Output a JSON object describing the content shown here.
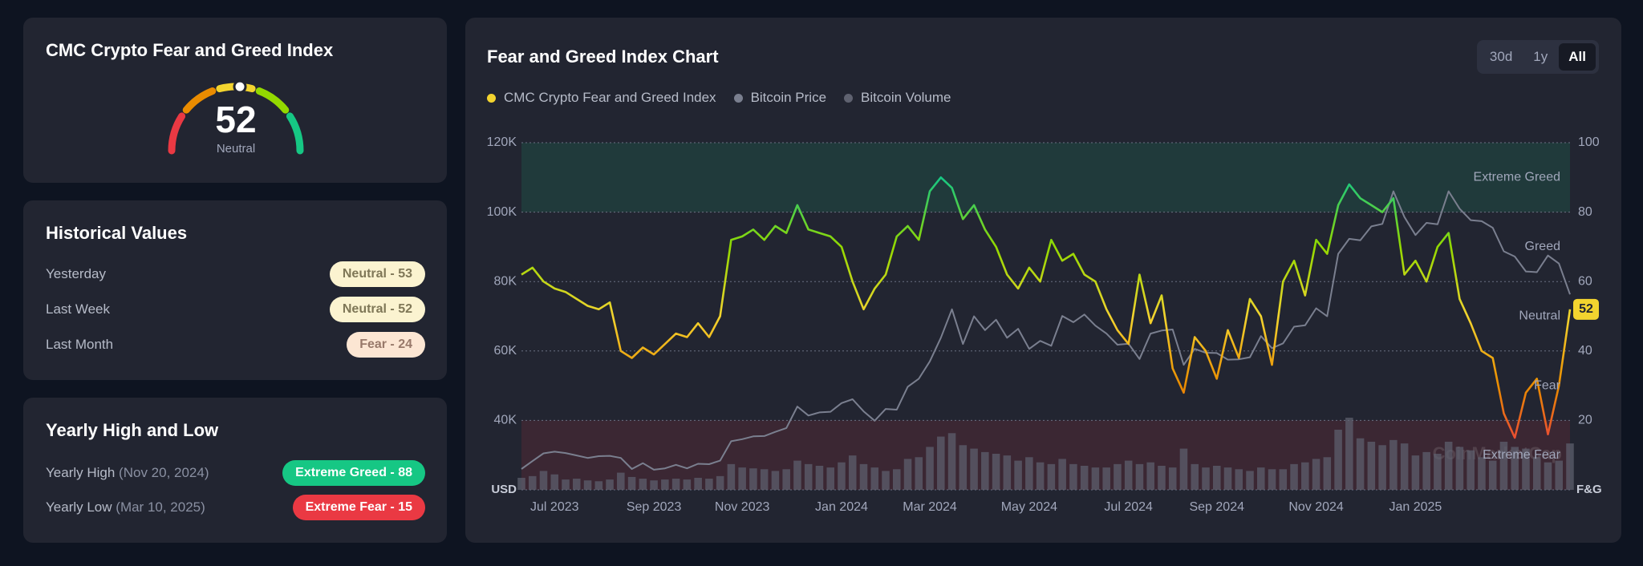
{
  "gauge": {
    "title": "CMC Crypto Fear and Greed Index",
    "value": 52,
    "label": "Neutral"
  },
  "historical": {
    "title": "Historical Values",
    "rows": [
      {
        "label": "Yesterday",
        "value": "Neutral - 53",
        "pill_color": "#fbf3d0",
        "text_color": "#7f7757"
      },
      {
        "label": "Last Week",
        "value": "Neutral - 52",
        "pill_color": "#fbf3d0",
        "text_color": "#7f7757"
      },
      {
        "label": "Last Month",
        "value": "Fear - 24",
        "pill_color": "#fce6d3",
        "text_color": "#98796a"
      }
    ]
  },
  "yearly": {
    "title": "Yearly High and Low",
    "rows": [
      {
        "label": "Yearly High",
        "date": "(Nov 20, 2024)",
        "value": "Extreme Greed - 88",
        "pill_color": "#16c784",
        "text_color": "#ffffff"
      },
      {
        "label": "Yearly Low",
        "date": "(Mar 10, 2025)",
        "value": "Extreme Fear - 15",
        "pill_color": "#ea3943",
        "text_color": "#ffffff"
      }
    ]
  },
  "chart_data": {
    "type": "line",
    "title": "Fear and Greed Index Chart",
    "range_buttons": [
      "30d",
      "1y",
      "All"
    ],
    "active_button": 2,
    "y_label": "USD",
    "y2_label": "F&G",
    "watermark": "CoinMarketCap",
    "grid": true,
    "ylim": [
      20000,
      120000
    ],
    "yticks": [
      {
        "value": 40000,
        "label": "40K"
      },
      {
        "value": 60000,
        "label": "60K"
      },
      {
        "value": 80000,
        "label": "80K"
      },
      {
        "value": 100000,
        "label": "100K"
      },
      {
        "value": 120000,
        "label": "120K"
      }
    ],
    "y2lim": [
      0,
      100
    ],
    "y2ticks": [
      20,
      40,
      60,
      80,
      100
    ],
    "bands": [
      {
        "label": "Extreme Fear",
        "from": 0,
        "to": 20,
        "color": "#ea3943",
        "shade": true
      },
      {
        "label": "Fear",
        "from": 20,
        "to": 40,
        "color": "#ea8c00",
        "shade": false
      },
      {
        "label": "Neutral",
        "from": 40,
        "to": 60,
        "color": "#f3d42f",
        "shade": false
      },
      {
        "label": "Greed",
        "from": 60,
        "to": 80,
        "color": "#93d900",
        "shade": false
      },
      {
        "label": "Extreme Greed",
        "from": 80,
        "to": 100,
        "color": "#16c784",
        "shade": true
      }
    ],
    "categories": [
      null,
      null,
      null,
      "Jul 2023",
      null,
      null,
      null,
      null,
      null,
      null,
      null,
      null,
      "Sep 2023",
      null,
      null,
      null,
      null,
      null,
      null,
      null,
      "Nov 2023",
      null,
      null,
      null,
      null,
      null,
      null,
      null,
      null,
      "Jan 2024",
      null,
      null,
      null,
      null,
      null,
      null,
      null,
      "Mar 2024",
      null,
      null,
      null,
      null,
      null,
      null,
      null,
      null,
      "May 2024",
      null,
      null,
      null,
      null,
      null,
      null,
      null,
      null,
      "Jul 2024",
      null,
      null,
      null,
      null,
      null,
      null,
      null,
      "Sep 2024",
      null,
      null,
      null,
      null,
      null,
      null,
      null,
      null,
      "Nov 2024",
      null,
      null,
      null,
      null,
      null,
      null,
      null,
      null,
      "Jan 2025",
      null,
      null,
      null,
      null,
      null,
      null,
      null,
      null,
      null,
      null,
      null,
      null,
      null,
      null
    ],
    "series": [
      {
        "name": "CMC Crypto Fear and Greed Index",
        "color": "#f3d42f",
        "axis": "y2",
        "values": [
          62,
          64,
          60,
          58,
          57,
          55,
          53,
          52,
          54,
          40,
          38,
          41,
          39,
          42,
          45,
          44,
          48,
          44,
          50,
          72,
          73,
          75,
          72,
          76,
          74,
          82,
          75,
          74,
          73,
          70,
          60,
          52,
          58,
          62,
          73,
          76,
          72,
          86,
          90,
          87,
          78,
          82,
          75,
          70,
          62,
          58,
          64,
          60,
          72,
          66,
          68,
          62,
          60,
          52,
          46,
          42,
          62,
          48,
          56,
          35,
          28,
          44,
          40,
          32,
          46,
          38,
          55,
          50,
          36,
          60,
          66,
          56,
          72,
          68,
          82,
          88,
          84,
          82,
          80,
          84,
          62,
          66,
          60,
          70,
          74,
          55,
          48,
          40,
          38,
          22,
          15,
          28,
          32,
          16,
          30,
          52
        ]
      },
      {
        "name": "Bitcoin Price",
        "color": "#7a7f8f",
        "axis": "y",
        "values": [
          26000,
          28300,
          30500,
          31000,
          30600,
          29900,
          29200,
          29700,
          29800,
          29200,
          26000,
          27700,
          25800,
          26200,
          27200,
          26200,
          27500,
          27400,
          28400,
          34000,
          34600,
          35400,
          35500,
          36700,
          37800,
          44000,
          41400,
          42300,
          42500,
          45000,
          46100,
          42600,
          39900,
          43300,
          43100,
          49700,
          52000,
          57000,
          63800,
          72000,
          62000,
          70000,
          66000,
          69000,
          63800,
          66400,
          60600,
          62900,
          61500,
          70100,
          68300,
          70500,
          67300,
          65000,
          61800,
          62100,
          57700,
          65000,
          65900,
          66200,
          56000,
          60600,
          59500,
          59400,
          57500,
          57600,
          58200,
          64300,
          60800,
          62200,
          67000,
          67400,
          72300,
          70000,
          88000,
          92300,
          91900,
          95900,
          96600,
          106000,
          98600,
          93400,
          96900,
          96500,
          106000,
          101000,
          97700,
          97400,
          95500,
          88700,
          87200,
          82900,
          82700,
          87500,
          85200,
          76300
        ]
      },
      {
        "name": "Bitcoin Volume",
        "color": "#5f6270",
        "type": "bar",
        "values": [
          14,
          16,
          22,
          18,
          12,
          13,
          11,
          10,
          12,
          20,
          15,
          13,
          11,
          12,
          13,
          12,
          14,
          13,
          16,
          30,
          26,
          25,
          24,
          22,
          24,
          34,
          30,
          28,
          26,
          32,
          40,
          30,
          26,
          22,
          24,
          36,
          38,
          50,
          62,
          66,
          52,
          48,
          44,
          42,
          40,
          34,
          38,
          32,
          30,
          36,
          30,
          28,
          26,
          26,
          30,
          34,
          30,
          32,
          28,
          26,
          48,
          30,
          26,
          28,
          26,
          24,
          22,
          26,
          24,
          24,
          30,
          32,
          36,
          38,
          70,
          84,
          60,
          56,
          52,
          58,
          54,
          40,
          44,
          42,
          56,
          50,
          46,
          38,
          34,
          56,
          50,
          48,
          38,
          32,
          34,
          54
        ]
      }
    ]
  }
}
